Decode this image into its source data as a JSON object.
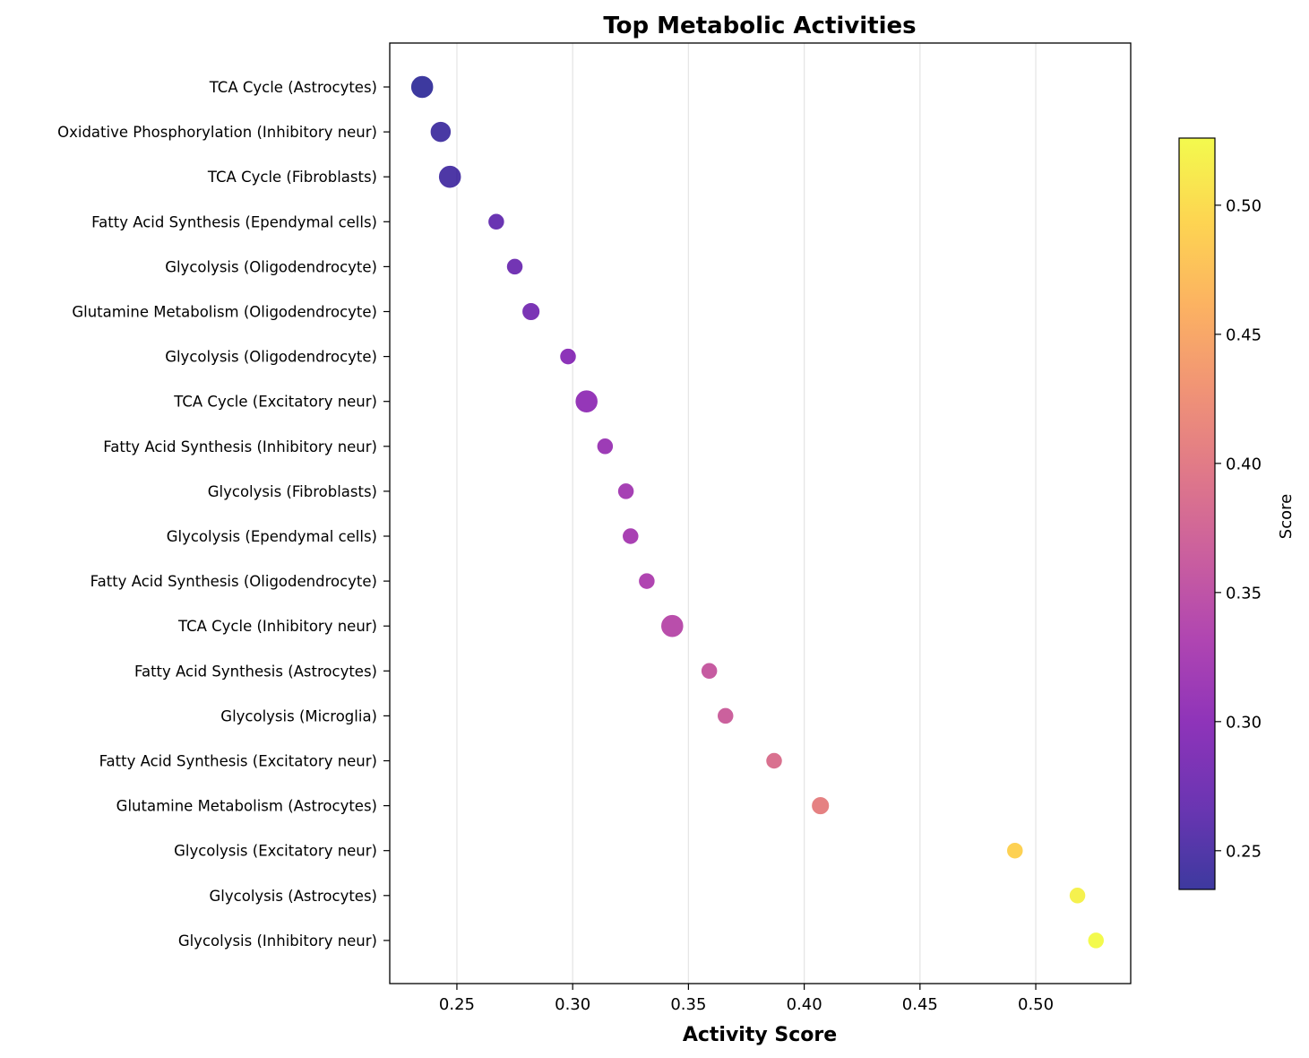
{
  "chart_data": {
    "type": "scatter",
    "title": "Top Metabolic Activities",
    "xlabel": "Activity Score",
    "ylabel": "",
    "xlim": [
      0.221,
      0.541
    ],
    "x_ticks": [
      "0.25",
      "0.30",
      "0.35",
      "0.40",
      "0.45",
      "0.50"
    ],
    "x_tick_values": [
      0.25,
      0.3,
      0.35,
      0.4,
      0.45,
      0.5
    ],
    "grid": "x-major",
    "colormap": "plasma",
    "colorbar": {
      "label": "Score",
      "range": [
        0.235,
        0.526
      ],
      "ticks": [
        "0.25",
        "0.30",
        "0.35",
        "0.40",
        "0.45",
        "0.50"
      ],
      "tick_values": [
        0.25,
        0.3,
        0.35,
        0.4,
        0.45,
        0.5
      ]
    },
    "size_encoding": "larger markers for TCA Cycle and Oxidative Phosphorylation",
    "points": [
      {
        "label": "TCA Cycle (Astrocytes)",
        "x": 0.235,
        "size": 3
      },
      {
        "label": "Oxidative Phosphorylation (Inhibitory neur)",
        "x": 0.243,
        "size": 2.5
      },
      {
        "label": "TCA Cycle (Fibroblasts)",
        "x": 0.247,
        "size": 3
      },
      {
        "label": "Fatty Acid Synthesis (Ependymal cells)",
        "x": 0.267,
        "size": 1.5
      },
      {
        "label": "Glycolysis (Oligodendrocyte)",
        "x": 0.275,
        "size": 1.5
      },
      {
        "label": "Glutamine Metabolism (Oligodendrocyte)",
        "x": 0.282,
        "size": 1.8
      },
      {
        "label": "Glycolysis (Oligodendrocyte)",
        "x": 0.298,
        "size": 1.5
      },
      {
        "label": "TCA Cycle (Excitatory neur)",
        "x": 0.306,
        "size": 3
      },
      {
        "label": "Fatty Acid Synthesis (Inhibitory neur)",
        "x": 0.314,
        "size": 1.5
      },
      {
        "label": "Glycolysis (Fibroblasts)",
        "x": 0.323,
        "size": 1.5
      },
      {
        "label": "Glycolysis (Ependymal cells)",
        "x": 0.325,
        "size": 1.5
      },
      {
        "label": "Fatty Acid Synthesis (Oligodendrocyte)",
        "x": 0.332,
        "size": 1.5
      },
      {
        "label": "TCA Cycle (Inhibitory neur)",
        "x": 0.343,
        "size": 3
      },
      {
        "label": "Fatty Acid Synthesis (Astrocytes)",
        "x": 0.359,
        "size": 1.5
      },
      {
        "label": "Glycolysis (Microglia)",
        "x": 0.366,
        "size": 1.5
      },
      {
        "label": "Fatty Acid Synthesis (Excitatory neur)",
        "x": 0.387,
        "size": 1.5
      },
      {
        "label": "Glutamine Metabolism (Astrocytes)",
        "x": 0.407,
        "size": 1.8
      },
      {
        "label": "Glycolysis (Excitatory neur)",
        "x": 0.491,
        "size": 1.5
      },
      {
        "label": "Glycolysis (Astrocytes)",
        "x": 0.518,
        "size": 1.5
      },
      {
        "label": "Glycolysis (Inhibitory neur)",
        "x": 0.526,
        "size": 1.5
      }
    ]
  }
}
